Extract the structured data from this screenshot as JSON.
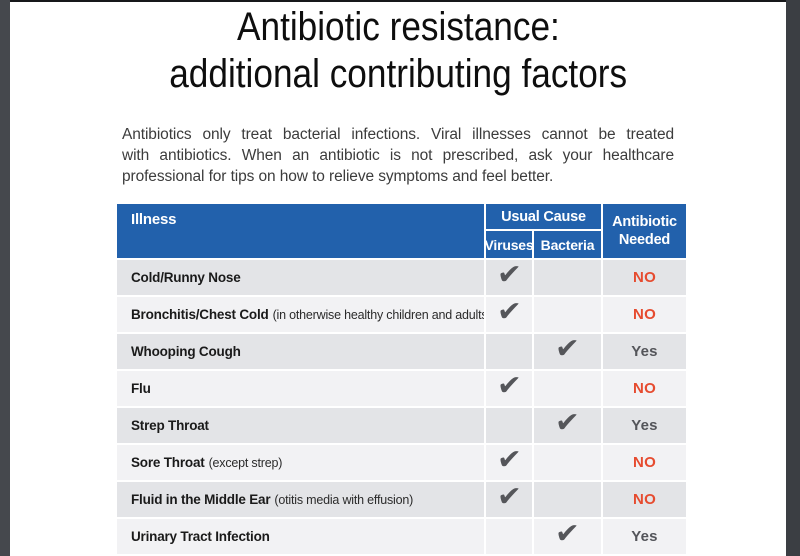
{
  "title": {
    "line1": "Antibiotic resistance:",
    "line2": "additional contributing factors"
  },
  "intro": {
    "lines": [
      "Antibiotics only treat bacterial infections. Viral illnesses cannot be treated",
      "with antibiotics. When an antibiotic is not prescribed, ask your healthcare",
      "professional for tips on how to relieve symptoms and feel better."
    ]
  },
  "table": {
    "header": {
      "illness": "Illness",
      "usual_cause": "Usual Cause",
      "viruses": "Viruses",
      "bacteria": "Bacteria",
      "antibiotic_needed_line1": "Antibiotic",
      "antibiotic_needed_line2": "Needed"
    },
    "check_glyph": "✔",
    "rows": [
      {
        "illness": "Cold/Runny Nose",
        "note": "",
        "cause": "viruses",
        "antibiotic_needed": "NO"
      },
      {
        "illness": "Bronchitis/Chest Cold",
        "note": "(in otherwise healthy children and adults)",
        "cause": "viruses",
        "antibiotic_needed": "NO"
      },
      {
        "illness": "Whooping Cough",
        "note": "",
        "cause": "bacteria",
        "antibiotic_needed": "Yes"
      },
      {
        "illness": "Flu",
        "note": "",
        "cause": "viruses",
        "antibiotic_needed": "NO"
      },
      {
        "illness": "Strep Throat",
        "note": "",
        "cause": "bacteria",
        "antibiotic_needed": "Yes"
      },
      {
        "illness": "Sore Throat",
        "note": "(except strep)",
        "cause": "viruses",
        "antibiotic_needed": "NO"
      },
      {
        "illness": "Fluid in the Middle Ear",
        "note": "(otitis media with effusion)",
        "cause": "viruses",
        "antibiotic_needed": "NO"
      },
      {
        "illness": "Urinary Tract Infection",
        "note": "",
        "cause": "bacteria",
        "antibiotic_needed": "Yes"
      }
    ]
  },
  "colors": {
    "header_blue": "#2261ac",
    "no_red": "#e64b2f",
    "yes_gray": "#54555a",
    "row_odd": "#e3e4e7",
    "row_even": "#f2f2f4",
    "check_gray": "#55565a",
    "side_bar_left": "#45484d",
    "side_bar_right": "#3b3e43"
  }
}
